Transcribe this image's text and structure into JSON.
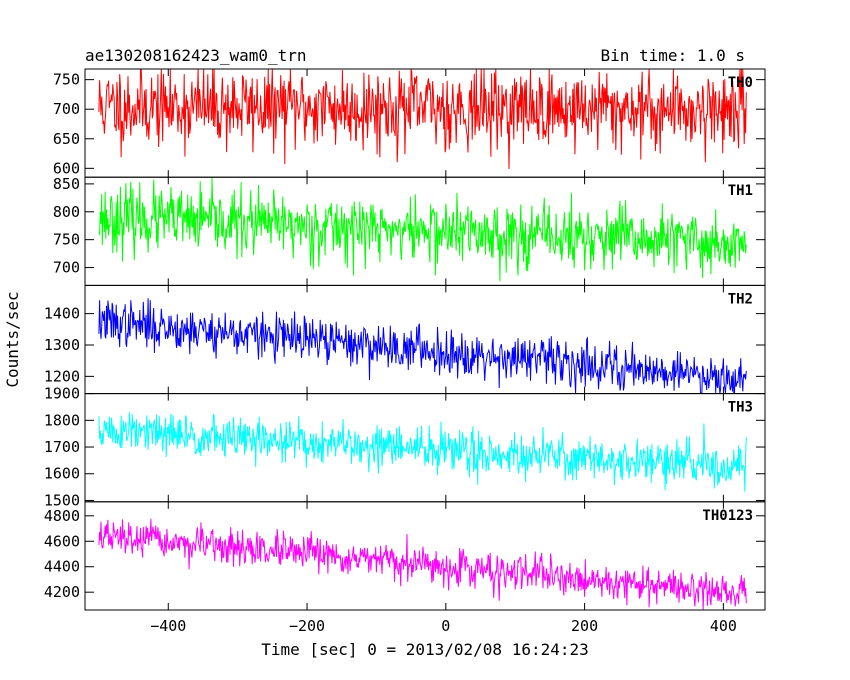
{
  "chart_data": {
    "type": "line",
    "title": "ae130208162423_wam0_trn",
    "subtitle": "Bin time: 1.0 s",
    "xlabel": "Time [sec] 0 = 2013/02/08 16:24:23",
    "ylabel": "Counts/sec",
    "xlim": [
      -520,
      460
    ],
    "x_range": [
      -500,
      433
    ],
    "x_step": 1,
    "x_ticks": [
      -400,
      -200,
      0,
      200,
      400
    ],
    "grid": false,
    "legend": "none",
    "series": [
      {
        "name": "TH0",
        "color": "#ff0000",
        "ylim": [
          585,
          768
        ],
        "y_ticks": [
          600,
          650,
          700,
          750
        ],
        "trend_y": [
          [
            -500,
            705
          ],
          [
            433,
            700
          ]
        ],
        "noise": 38,
        "seed": 11
      },
      {
        "name": "TH1",
        "color": "#00ff00",
        "ylim": [
          668,
          862
        ],
        "y_ticks": [
          700,
          750,
          800,
          850
        ],
        "trend_y": [
          [
            -500,
            790
          ],
          [
            433,
            742
          ]
        ],
        "noise": 32,
        "seed": 23
      },
      {
        "name": "TH2",
        "color": "#0000ff",
        "ylim": [
          1145,
          1490
        ],
        "y_ticks": [
          1200,
          1300,
          1400
        ],
        "trend_y": [
          [
            -500,
            1375
          ],
          [
            433,
            1195
          ]
        ],
        "noise": 40,
        "seed": 37
      },
      {
        "name": "TH3",
        "color": "#00ffff",
        "ylim": [
          1495,
          1900
        ],
        "y_ticks": [
          1500,
          1600,
          1700,
          1800,
          1900
        ],
        "trend_y": [
          [
            -500,
            1760
          ],
          [
            433,
            1625
          ]
        ],
        "noise": 45,
        "seed": 51
      },
      {
        "name": "TH0123",
        "color": "#ff00ff",
        "ylim": [
          4060,
          4910
        ],
        "y_ticks": [
          4200,
          4400,
          4600,
          4800
        ],
        "trend_y": [
          [
            -500,
            4640
          ],
          [
            433,
            4190
          ]
        ],
        "noise": 75,
        "seed": 67
      }
    ]
  }
}
